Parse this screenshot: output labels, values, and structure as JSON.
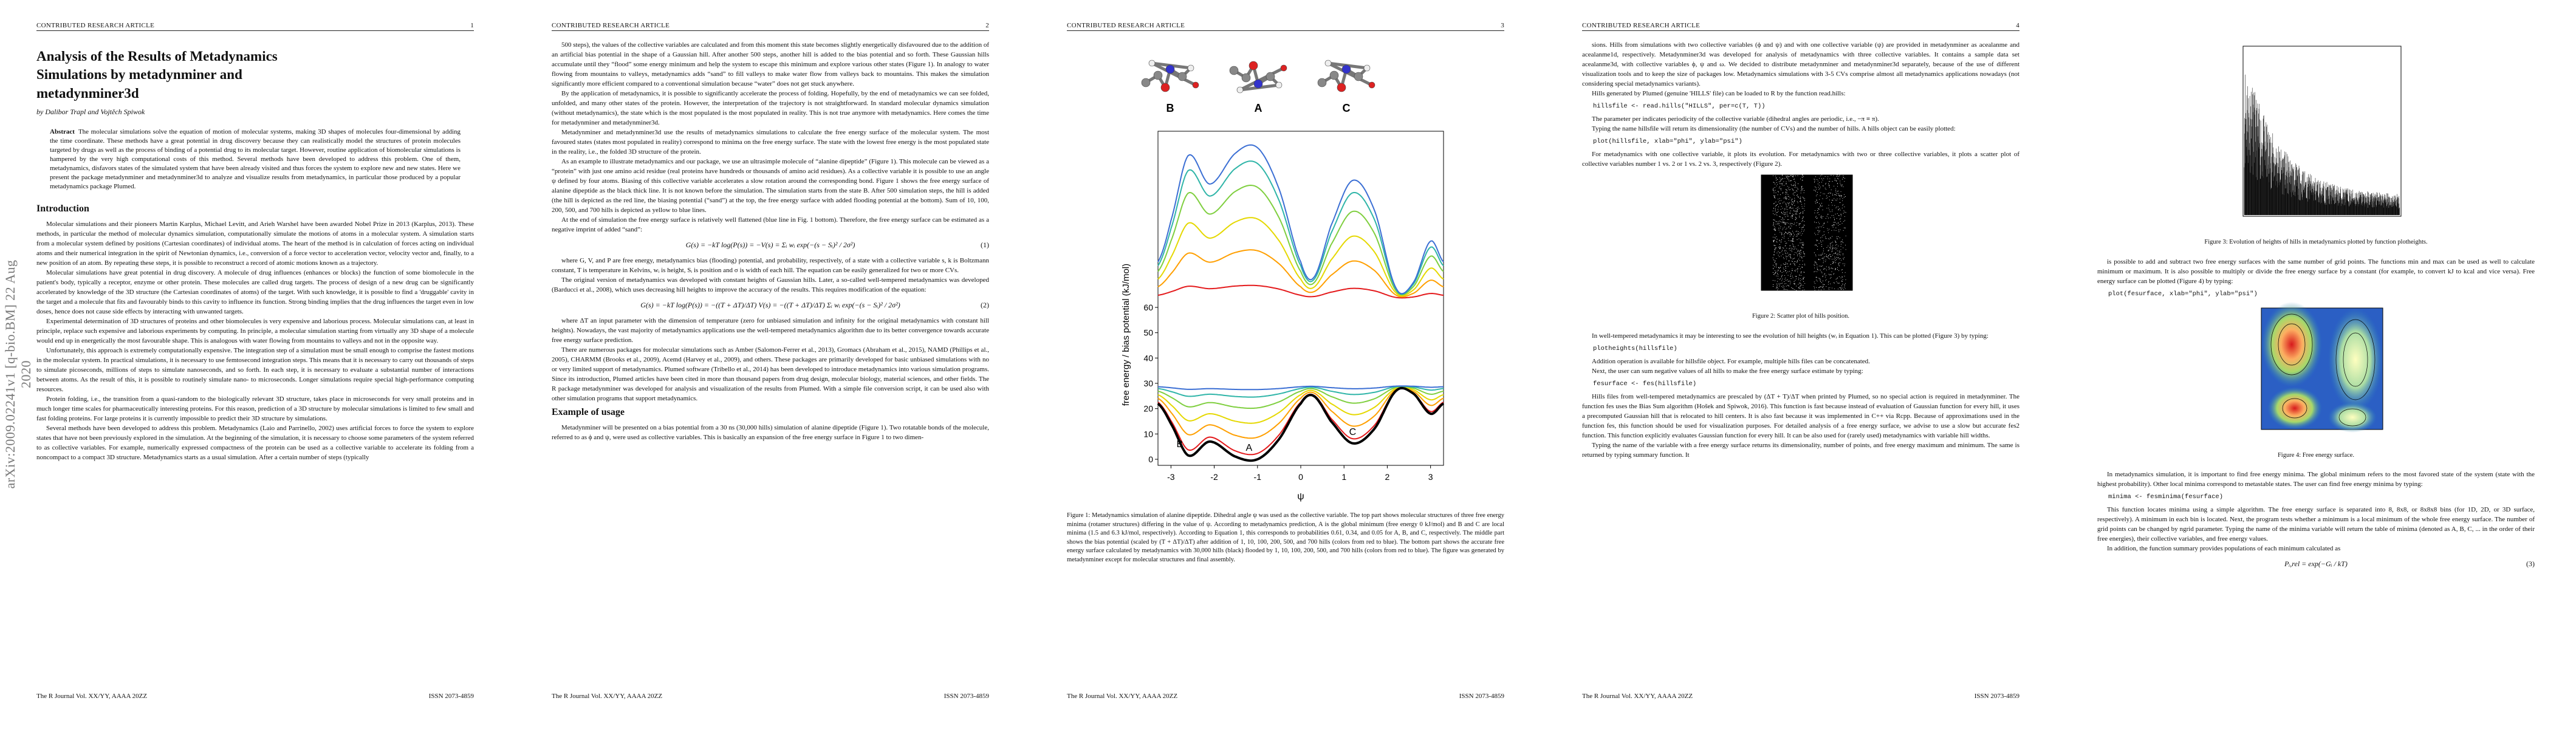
{
  "pages": [
    {
      "header": {
        "left": "CONTRIBUTED RESEARCH ARTICLE",
        "right": "1"
      },
      "stamp": "arXiv:2009.02241v1 [q-bio.BM] 22 Aug 2020",
      "blocks": [
        {
          "title": "Analysis of the Results of Metadynamics Simulations by metadynminer and metadynminer3d"
        },
        {
          "authors": "by Dalibor Trapl and Vojtěch Spiwok"
        },
        {
          "abstract": {
            "label": "Abstract",
            "text": "The molecular simulations solve the equation of motion of molecular systems, making 3D shapes of molecules four-dimensional by adding the time coordinate. These methods have a great potential in drug discovery because they can realistically model the structures of protein molecules targeted by drugs as well as the process of binding of a potential drug to its molecular target. However, routine application of biomolecular simulations is hampered by the very high computational costs of this method. Several methods have been developed to address this problem. One of them, metadynamics, disfavors states of the simulated system that have been already visited and thus forces the system to explore new and new states. Here we present the package metadynminer and metadynminer3d to analyze and visualize results from metadynamics, in particular those produced by a popular metadynamics package Plumed."
          }
        },
        {
          "h": "Introduction"
        },
        {
          "p": "Molecular simulations and their pioneers Martin Karplus, Michael Levitt, and Arieh Warshel have been awarded Nobel Prize in 2013 (Karplus, 2013). These methods, in particular the method of molecular dynamics simulation, computationally simulate the motions of atoms in a molecular system. A simulation starts from a molecular system defined by positions (Cartesian coordinates) of individual atoms. The heart of the method is in calculation of forces acting on individual atoms and their numerical integration in the spirit of Newtonian dynamics, i.e., conversion of a force vector to acceleration vector, velocity vector and, finally, to a new position of an atom. By repeating these steps, it is possible to reconstruct a record of atomic motions known as a trajectory."
        },
        {
          "p": "Molecular simulations have great potential in drug discovery. A molecule of drug influences (enhances or blocks) the function of some biomolecule in the patient's body, typically a receptor, enzyme or other protein. These molecules are called drug targets. The process of design of a new drug can be significantly accelerated by knowledge of the 3D structure (the Cartesian coordinates of atoms) of the target. With such knowledge, it is possible to find a 'druggable' cavity in the target and a molecule that fits and favourably binds to this cavity to influence its function. Strong binding implies that the drug influences the target even in low doses, hence does not cause side effects by interacting with unwanted targets."
        },
        {
          "p": "Experimental determination of 3D structures of proteins and other biomolecules is very expensive and laborious process. Molecular simulations can, at least in principle, replace such expensive and laborious experiments by computing. In principle, a molecular simulation starting from virtually any 3D shape of a molecule would end up in energetically the most favourable shape. This is analogous with water flowing from mountains to valleys and not in the opposite way."
        },
        {
          "p": "Unfortunately, this approach is extremely computationally expensive. The integration step of a simulation must be small enough to comprise the fastest motions in the molecular system. In practical simulations, it is necessary to use femtosecond integration steps. This means that it is necessary to carry out thousands of steps to simulate picoseconds, millions of steps to simulate nanoseconds, and so forth. In each step, it is necessary to evaluate a substantial number of interactions between atoms. As the result of this, it is possible to routinely simulate nano- to microseconds. Longer simulations require special high-performance computing resources."
        },
        {
          "p": "Protein folding, i.e., the transition from a quasi-random to the biologically relevant 3D structure, takes place in microseconds for very small proteins and in much longer time scales for pharmaceutically interesting proteins. For this reason, prediction of a 3D structure by molecular simulations is limited to few small and fast folding proteins. For large proteins it is currently impossible to predict their 3D structure by simulations."
        },
        {
          "p": "Several methods have been developed to address this problem. Metadynamics (Laio and Parrinello, 2002) uses artificial forces to force the system to explore states that have not been previously explored in the simulation. At the beginning of the simulation, it is necessary to choose some parameters of the system referred to as collective variables. For example, numerically expressed compactness of the protein can be used as a collective variable to accelerate its folding from a noncompact to a compact 3D structure. Metadynamics starts as a usual simulation. After a certain number of steps (typically"
        }
      ],
      "footer": {
        "left": "The R Journal Vol. XX/YY, AAAA 20ZZ",
        "right": "ISSN 2073-4859"
      }
    },
    {
      "header": {
        "left": "CONTRIBUTED RESEARCH ARTICLE",
        "right": "2"
      },
      "blocks": [
        {
          "p": "500 steps), the values of the collective variables are calculated and from this moment this state becomes slightly energetically disfavoured due to the addition of an artificial bias potential in the shape of a Gaussian hill. After another 500 steps, another hill is added to the bias potential and so forth. These Gaussian hills accumulate until they “flood” some energy minimum and help the system to escape this minimum and explore various other states (Figure 1). In analogy to water flowing from mountains to valleys, metadynamics adds “sand” to fill valleys to make water flow from valleys back to mountains. This makes the simulation significantly more efficient compared to a conventional simulation because “water” does not get stuck anywhere."
        },
        {
          "p": "By the application of metadynamics, it is possible to significantly accelerate the process of folding. Hopefully, by the end of metadynamics we can see folded, unfolded, and many other states of the protein. However, the interpretation of the trajectory is not straightforward. In standard molecular dynamics simulation (without metadynamics), the state which is the most populated is the most populated in reality. This is not true anymore with metadynamics. Here comes the time for metadynminer and metadynminer3d."
        },
        {
          "p": "Metadynminer and metadynminer3d use the results of metadynamics simulations to calculate the free energy surface of the molecular system. The most favoured states (states most populated in reality) correspond to minima on the free energy surface. The state with the lowest free energy is the most populated state in the reality, i.e., the folded 3D structure of the protein."
        },
        {
          "p": "As an example to illustrate metadynamics and our package, we use an ultrasimple molecule of “alanine dipeptide” (Figure 1). This molecule can be viewed as a “protein” with just one amino acid residue (real proteins have hundreds or thousands of amino acid residues). As a collective variable it is possible to use an angle ψ defined by four atoms. Biasing of this collective variable accelerates a slow rotation around the corresponding bond. Figure 1 shows the free energy surface of alanine dipeptide as the black thick line. It is not known before the simulation. The simulation starts from the state B. After 500 simulation steps, the hill is added (the hill is depicted as the red line, the biasing potential (“sand”) at the top, the free energy surface with added flooding potential at the bottom). Sum of 10, 100, 200, 500, and 700 hills is depicted as yellow to blue lines."
        },
        {
          "p": "At the end of simulation the free energy surface is relatively well flattened (blue line in Fig. 1 bottom). Therefore, the free energy surface can be estimated as a negative imprint of added “sand”:"
        },
        {
          "eq": "G(s) = −kT log(P(s)) = −V(s) = Σᵢ wᵢ exp(−(s − Sᵢ)² / 2σ²)",
          "num": "(1)"
        },
        {
          "p": "where G, V, and P are free energy, metadynamics bias (flooding) potential, and probability, respectively, of a state with a collective variable s, k is Boltzmann constant, T is temperature in Kelvins, wᵢ is height, Sᵢ is position and σ is width of each hill. The equation can be easily generalized for two or more CVs."
        },
        {
          "p": "The original version of metadynamics was developed with constant heights of Gaussian hills. Later, a so-called well-tempered metadynamics was developed (Barducci et al., 2008), which uses decreasing hill heights to improve the accuracy of the results. This requires modification of the equation:"
        },
        {
          "eq": "G(s) = −kT log(P(s)) = −((T + ΔT)/ΔT) V(s) = −((T + ΔT)/ΔT) Σᵢ wᵢ exp(−(s − Sᵢ)² / 2σ²)",
          "num": "(2)"
        },
        {
          "p": "where ΔT an input parameter with the dimension of temperature (zero for unbiased simulation and infinity for the original metadynamics with constant hill heights). Nowadays, the vast majority of metadynamics applications use the well-tempered metadynamics algorithm due to its better convergence towards accurate free energy surface prediction."
        },
        {
          "p": "There are numerous packages for molecular simulations such as Amber (Salomon-Ferrer et al., 2013), Gromacs (Abraham et al., 2015), NAMD (Phillips et al., 2005), CHARMM (Brooks et al., 2009), Acemd (Harvey et al., 2009), and others. These packages are primarily developed for basic unbiased simulations with no or very limited support of metadynamics. Plumed software (Tribello et al., 2014) has been developed to introduce metadynamics into various simulation programs. Since its introduction, Plumed articles have been cited in more than thousand papers from drug design, molecular biology, material sciences, and other fields. The R package metadynminer was developed for analysis and visualization of the results from Plumed. With a simple file conversion script, it can be used also with other simulation programs that support metadynamics."
        },
        {
          "h": "Example of usage"
        },
        {
          "p": "Metadynminer will be presented on a bias potential from a 30 ns (30,000 hills) simulation of alanine dipeptide (Figure 1). Two rotatable bonds of the molecule, referred to as ϕ and ψ, were used as collective variables. This is basically an expansion of the free energy surface in Figure 1 to two dimen-"
        }
      ],
      "footer": {
        "left": "The R Journal Vol. XX/YY, AAAA 20ZZ",
        "right": "ISSN 2073-4859"
      }
    },
    {
      "header": {
        "left": "CONTRIBUTED RESEARCH ARTICLE",
        "right": "3"
      },
      "figure": {
        "molecules": [
          "B",
          "A",
          "C"
        ],
        "ylabel": "free energy / bias potential (kJ/mol)",
        "xlabel": "ψ",
        "yticks": [
          0,
          10,
          20,
          30,
          40,
          50,
          60
        ],
        "xticks": [
          -3,
          -2,
          -1,
          0,
          1,
          2,
          3
        ],
        "minima": [
          "B",
          "A",
          "C"
        ]
      },
      "blocks": [
        {
          "caption": "Figure 1: Metadynamics simulation of alanine dipeptide. Dihedral angle ψ was used as the collective variable. The top part shows molecular structures of three free energy minima (rotamer structures) differing in the value of ψ. According to metadynamics prediction, A is the global minimum (free energy 0 kJ/mol) and B and C are local minima (1.5 and 6.3 kJ/mol, respectively). According to Equation 1, this corresponds to probabilities 0.61, 0.34, and 0.05 for A, B, and C, respectively. The middle part shows the bias potential (scaled by (T + ΔT)/ΔT) after addition of 1, 10, 100, 200, 500, and 700 hills (colors from red to blue). The bottom part shows the accurate free energy surface calculated by metadynamics with 30,000 hills (black) flooded by 1, 10, 100, 200, 500, and 700 hills (colors from red to blue). The figure was generated by metadynminer except for molecular structures and final assembly."
        }
      ],
      "footer": {
        "left": "The R Journal Vol. XX/YY, AAAA 20ZZ",
        "right": "ISSN 2073-4859"
      }
    },
    {
      "header": {
        "left": "CONTRIBUTED RESEARCH ARTICLE",
        "right": "4"
      },
      "blocks": [
        {
          "p": "sions. Hills from simulations with two collective variables (ϕ and ψ) and with one collective variable (ψ) are provided in metadynminer as acealanme and acealanme1d, respectively. Metadynminer3d was developed for analysis of metadynamics with three collective variables. It contains a sample data set acealanme3d, with collective variables ϕ, ψ and ω. We decided to distribute metadynminer and metadynminer3d separately, because of the use of different visualization tools and to keep the size of packages low. Metadynamics simulations with 3-5 CVs comprise almost all metadynamics applications nowadays (not considering special metadynamics variants)."
        },
        {
          "p": "Hills generated by Plumed (genuine 'HILLS' file) can be loaded to R by the function read.hills:"
        },
        {
          "code": "hillsfile <- read.hills(\"HILLS\", per=c(T, T))"
        },
        {
          "p": "The parameter per indicates periodicity of the collective variable (dihedral angles are periodic, i.e., −π ≡ π)."
        },
        {
          "p": "Typing the name hillsfile will return its dimensionality (the number of CVs) and the number of hills. A hills object can be easily plotted:"
        },
        {
          "code": "plot(hillsfile, xlab=\"phi\", ylab=\"psi\")"
        },
        {
          "p": "For metadynamics with one collective variable, it plots its evolution. For metadynamics with two or three collective variables, it plots a scatter plot of collective variables number 1 vs. 2 or 1 vs. 2 vs. 3, respectively (Figure 2)."
        },
        {
          "caption": "Figure 2: Scatter plot of hills position."
        },
        {
          "p": "In well-tempered metadynamics it may be interesting to see the evolution of hill heights (wᵢ in Equation 1). This can be plotted (Figure 3) by typing:"
        },
        {
          "code": "plotheights(hillsfile)"
        },
        {
          "p": "Addition operation is available for hillsfile object. For example, multiple hills files can be concatenated."
        },
        {
          "p": "Next, the user can sum negative values of all hills to make the free energy surface estimate by typing:"
        },
        {
          "code": "fesurface <- fes(hillsfile)"
        },
        {
          "p": "Hills files from well-tempered metadynamics are prescaled by (ΔT + T)/ΔT when printed by Plumed, so no special action is required in metadynminer. The function fes uses the Bias Sum algorithm (Hošek and Spiwok, 2016). This function is fast because instead of evaluation of Gaussian function for every hill, it uses a precomputed Gaussian hill that is relocated to hill centers. It is also fast because it was implemented in C++ via Rcpp. Because of approximations used in the function fes, this function should be used for visualization purposes. For detailed analysis of a free energy surface, we advise to use a slow but accurate fes2 function. This function explicitly evaluates Gaussian function for every hill. It can be also used for (rarely used) metadynamics with variable hill widths."
        },
        {
          "p": "Typing the name of the variable with a free energy surface returns its dimensionality, number of points, and free energy maximum and minimum. The same is returned by typing summary function. It"
        }
      ],
      "footer": {
        "left": "The R Journal Vol. XX/YY, AAAA 20ZZ",
        "right": "ISSN 2073-4859"
      }
    },
    {
      "blocks": [
        {
          "caption": "Figure 3: Evolution of heights of hills in metadynamics plotted by function plotheights."
        },
        {
          "p": "is possible to add and subtract two free energy surfaces with the same number of grid points. The functions min and max can be used as well to calculate minimum or maximum. It is also possible to multiply or divide the free energy surface by a constant (for example, to convert kJ to kcal and vice versa). Free energy surface can be plotted (Figure 4) by typing:"
        },
        {
          "code": "plot(fesurface, xlab=\"phi\", ylab=\"psi\")"
        },
        {
          "caption": "Figure 4: Free energy surface."
        },
        {
          "p": "In metadynamics simulation, it is important to find free energy minima. The global minimum refers to the most favored state of the system (state with the highest probability). Other local minima correspond to metastable states. The user can find free energy minima by typing:"
        },
        {
          "code": "minima <- fesminima(fesurface)"
        },
        {
          "p": "This function locates minima using a simple algorithm. The free energy surface is separated into 8, 8x8, or 8x8x8 bins (for 1D, 2D, or 3D surface, respectively). A minimum in each bin is located. Next, the program tests whether a minimum is a local minimum of the whole free energy surface. The number of grid points can be changed by ngrid parameter. Typing the name of the minima variable will return the table of minima (denoted as A, B, C, ... in the order of their free energies), their collective variables, and free energy values."
        },
        {
          "p": "In addition, the function summary provides populations of each minimum calculated as"
        },
        {
          "eq": "Pᵢ,rel = exp(−Gᵢ / kT)",
          "num": "(3)"
        }
      ]
    }
  ]
}
